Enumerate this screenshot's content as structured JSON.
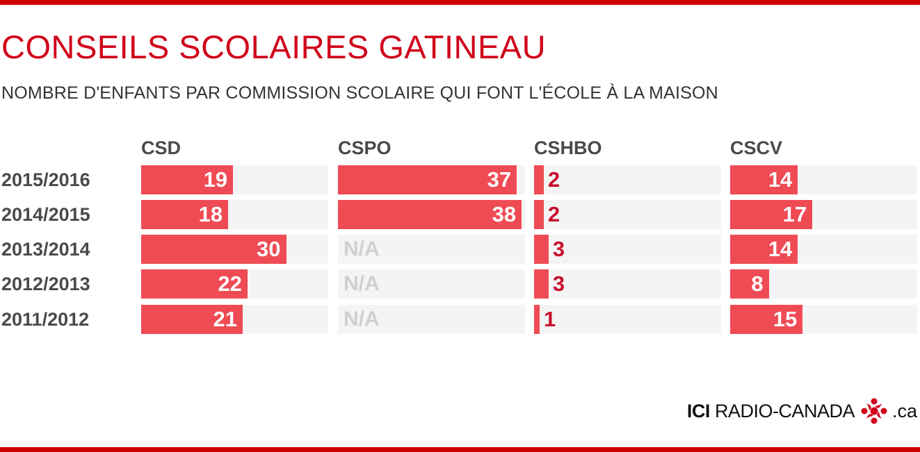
{
  "title": "CONSEILS SCOLAIRES GATINEAU",
  "subtitle": "NOMBRE D'ENFANTS PAR COMMISSION SCOLAIRE QUI FONT L'ÉCOLE À LA MAISON",
  "colors": {
    "accent": "#cc0000",
    "bar": "#ef4b55",
    "track": "#f4f4f4",
    "na": "#cfcfcf"
  },
  "logo": {
    "prefix": "ICI",
    "name": "RADIO-CANADA",
    "suffix": ".ca",
    "icon": "radio-canada-gem-icon"
  },
  "chart_data": {
    "type": "bar",
    "orientation": "horizontal",
    "title": "CONSEILS SCOLAIRES GATINEAU",
    "subtitle": "NOMBRE D'ENFANTS PAR COMMISSION SCOLAIRE QUI FONT L'ÉCOLE À LA MAISON",
    "categories": [
      "2015/2016",
      "2014/2015",
      "2013/2014",
      "2012/2013",
      "2011/2012"
    ],
    "xlim": [
      0,
      40
    ],
    "na_label": "N/A",
    "series": [
      {
        "name": "CSD",
        "values": [
          19,
          18,
          30,
          22,
          21
        ]
      },
      {
        "name": "CSPO",
        "values": [
          37,
          38,
          null,
          null,
          null
        ]
      },
      {
        "name": "CSHBO",
        "values": [
          2,
          2,
          3,
          3,
          1
        ]
      },
      {
        "name": "CSCV",
        "values": [
          14,
          17,
          14,
          8,
          15
        ]
      }
    ]
  }
}
